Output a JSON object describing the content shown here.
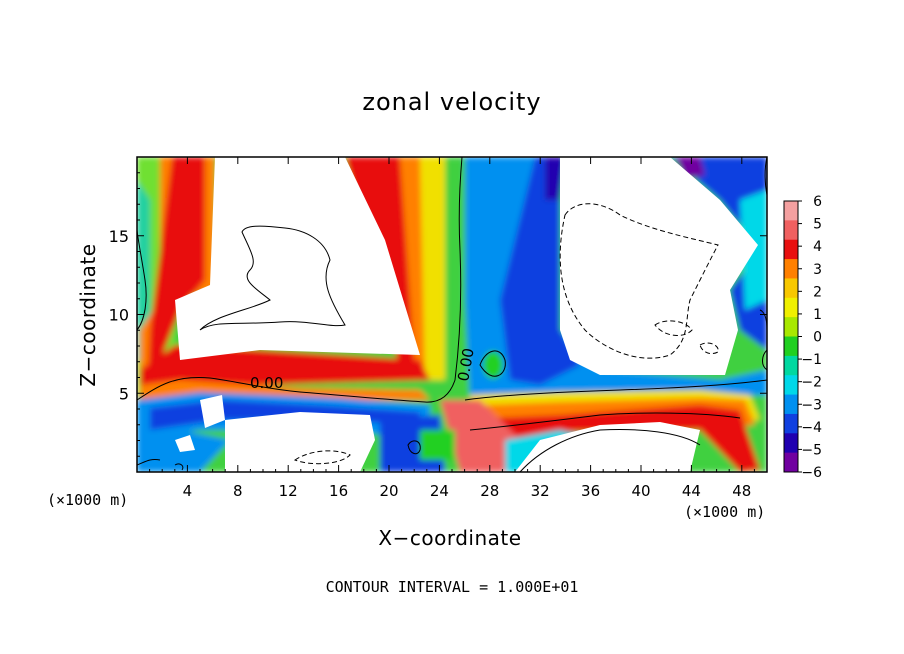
{
  "chart_data": {
    "type": "heatmap",
    "title": "zonal velocity",
    "xlabel": "X−coordinate",
    "ylabel": "Z−coordinate",
    "x_unit_label_left": "(×1000 m)",
    "x_unit_label_right": "(×1000 m)",
    "footer": "CONTOUR INTERVAL = 1.000E+01",
    "xlim": [
      0,
      50
    ],
    "ylim": [
      0,
      20
    ],
    "x_ticks": [
      4,
      8,
      12,
      16,
      20,
      24,
      28,
      32,
      36,
      40,
      44,
      48
    ],
    "x_tick_labels": [
      "4",
      "8",
      "12",
      "16",
      "20",
      "24",
      "28",
      "32",
      "36",
      "40",
      "44",
      "48"
    ],
    "y_ticks": [
      5,
      10,
      15
    ],
    "y_tick_labels": [
      "5",
      "10",
      "15"
    ],
    "colorbar": {
      "min": -6,
      "max": 6,
      "ticks": [
        6,
        5,
        4,
        3,
        2,
        1,
        0,
        -1,
        -2,
        -3,
        -4,
        -5,
        -6
      ],
      "tick_labels": [
        "6",
        "5",
        "4",
        "3",
        "2",
        "1",
        "0",
        "−1",
        "−2",
        "−3",
        "−4",
        "−5",
        "−6"
      ],
      "colors": [
        "#f4a0a0",
        "#f06060",
        "#e81010",
        "#ff8000",
        "#f8c800",
        "#f0f000",
        "#a8e800",
        "#20d020",
        "#00d8a0",
        "#00d8e8",
        "#0090f0",
        "#1040e0",
        "#2000b0",
        "#7000a0"
      ]
    },
    "contour_labels": [
      "0.00",
      "0.00"
    ],
    "saturated_color": "#ffffff"
  }
}
